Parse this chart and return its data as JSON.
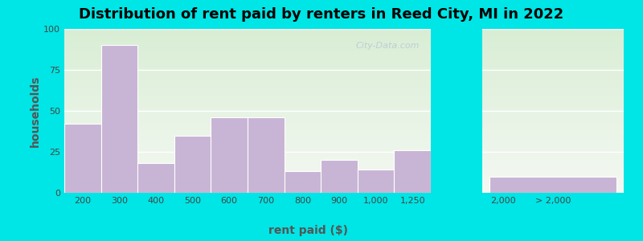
{
  "title": "Distribution of rent paid by renters in Reed City, MI in 2022",
  "xlabel": "rent paid ($)",
  "ylabel": "households",
  "bar_color": "#c8b4d4",
  "background_outer": "#00e5e5",
  "yticks": [
    0,
    25,
    50,
    75,
    100
  ],
  "ylim": [
    0,
    100
  ],
  "bars_left": {
    "labels": [
      "200",
      "300",
      "400",
      "500",
      "600",
      "700",
      "800",
      "900",
      "1,000",
      "1,250"
    ],
    "values": [
      42,
      90,
      18,
      35,
      46,
      46,
      13,
      20,
      14,
      26
    ]
  },
  "bar_2000_label": "2,000",
  "bar_gt2000_label": "> 2,000",
  "bar_gt2000_value": 10,
  "watermark": "City-Data.com",
  "title_fontsize": 13,
  "axis_label_fontsize": 10,
  "tick_fontsize": 8
}
